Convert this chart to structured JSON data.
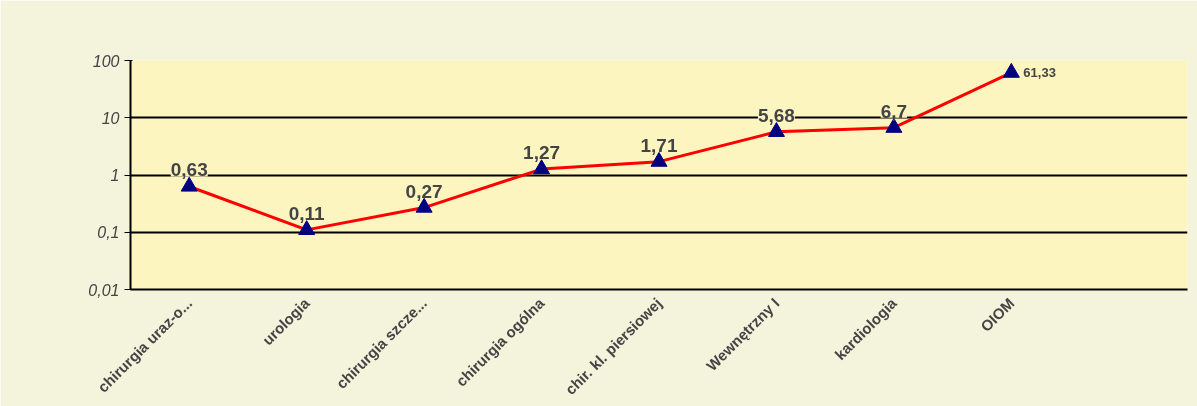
{
  "chart_data": {
    "type": "line",
    "categories": [
      "chirurgia uraz-o...",
      "urologia",
      "chirurgia szcze...",
      "chirurgia ogólna",
      "chir. kl. piersiowej",
      "Wewnętrzny I",
      "kardiologia",
      "OIOM",
      null
    ],
    "series": [
      {
        "color": "#ff0000",
        "values": [
          0.63,
          0.11,
          0.27,
          1.27,
          1.71,
          5.68,
          6.7,
          61.33,
          null
        ],
        "value_labels": [
          "0,63",
          "0,11",
          "0,27",
          "1,27",
          "1,71",
          "5,68",
          "6,7",
          "61,33",
          null
        ]
      }
    ],
    "log": true,
    "ylim": [
      0.01,
      100
    ],
    "yticks": [
      {
        "value": 0.01,
        "label": "0,01"
      },
      {
        "value": 0.1,
        "label": "0,1"
      },
      {
        "value": 1,
        "label": "1"
      },
      {
        "value": 10,
        "label": "10"
      },
      {
        "value": 100,
        "label": "100"
      }
    ],
    "grid": "y",
    "marker": "triangle",
    "line_style": "solid"
  }
}
